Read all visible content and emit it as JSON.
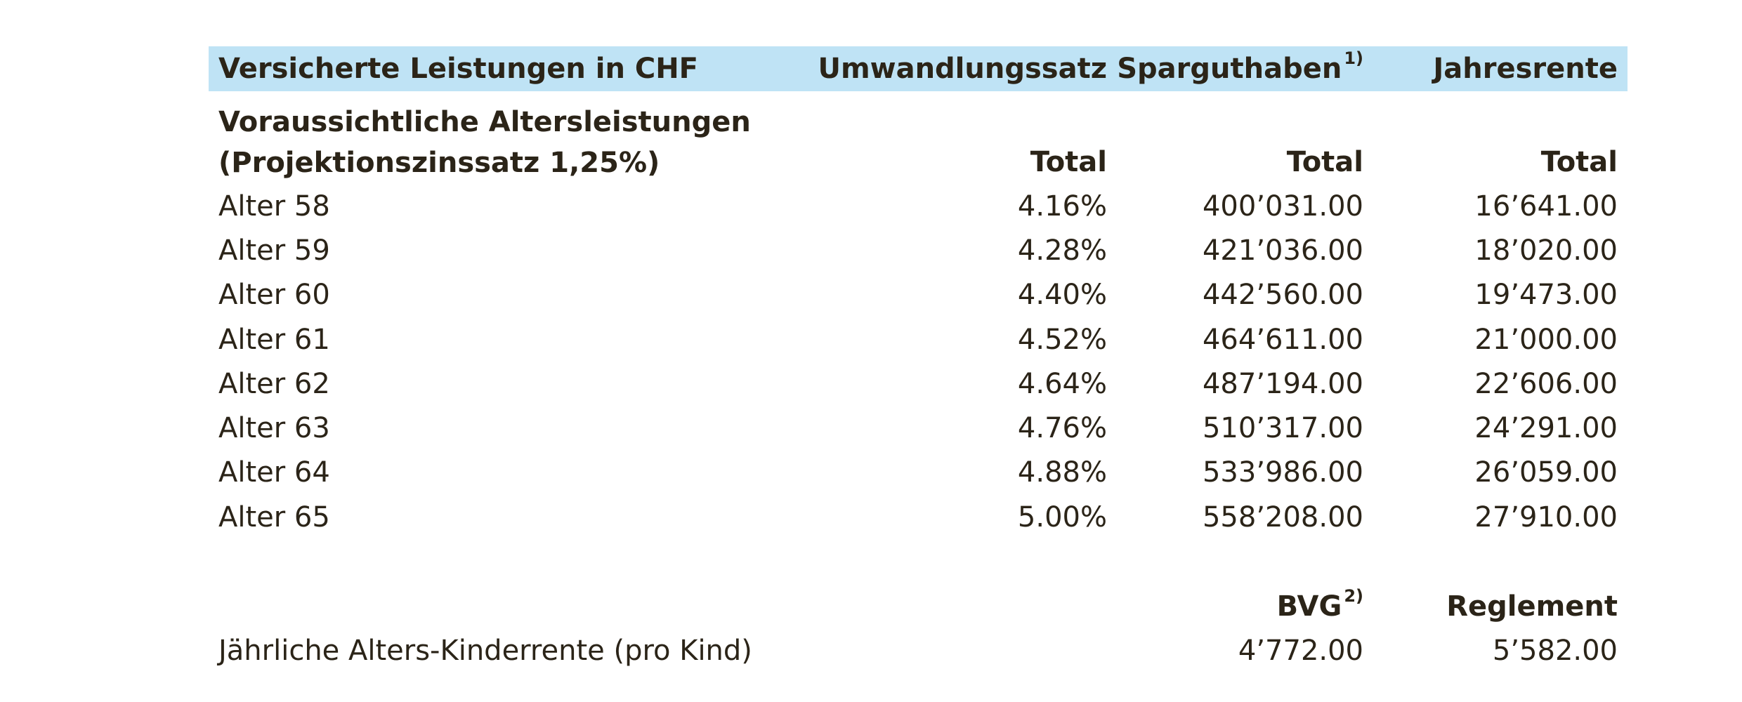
{
  "header": {
    "col1": "Versicherte Leistungen in CHF",
    "col2": "Umwandlungssatz",
    "col3": "Sparguthaben",
    "col3_note": "1)",
    "col4": "Jahresrente"
  },
  "section": {
    "title_line1": "Voraussichtliche Altersleistungen",
    "title_line2": "(Projektionszinssatz 1,25%)",
    "total_rate": "Total",
    "total_spar": "Total",
    "total_rente": "Total"
  },
  "rows": [
    {
      "label": "Alter 58",
      "rate": "4.16%",
      "spar": "400’031.00",
      "rente": "16’641.00"
    },
    {
      "label": "Alter 59",
      "rate": "4.28%",
      "spar": "421’036.00",
      "rente": "18’020.00"
    },
    {
      "label": "Alter 60",
      "rate": "4.40%",
      "spar": "442’560.00",
      "rente": "19’473.00"
    },
    {
      "label": "Alter 61",
      "rate": "4.52%",
      "spar": "464’611.00",
      "rente": "21’000.00"
    },
    {
      "label": "Alter 62",
      "rate": "4.64%",
      "spar": "487’194.00",
      "rente": "22’606.00"
    },
    {
      "label": "Alter 63",
      "rate": "4.76%",
      "spar": "510’317.00",
      "rente": "24’291.00"
    },
    {
      "label": "Alter 64",
      "rate": "4.88%",
      "spar": "533’986.00",
      "rente": "26’059.00"
    },
    {
      "label": "Alter 65",
      "rate": "5.00%",
      "spar": "558’208.00",
      "rente": "27’910.00"
    }
  ],
  "children": {
    "col_bvg": "BVG",
    "col_bvg_note": "2)",
    "col_reglement": "Reglement",
    "label": "Jährliche Alters-Kinderrente (pro Kind)",
    "bvg": "4’772.00",
    "reglement": "5’582.00"
  }
}
